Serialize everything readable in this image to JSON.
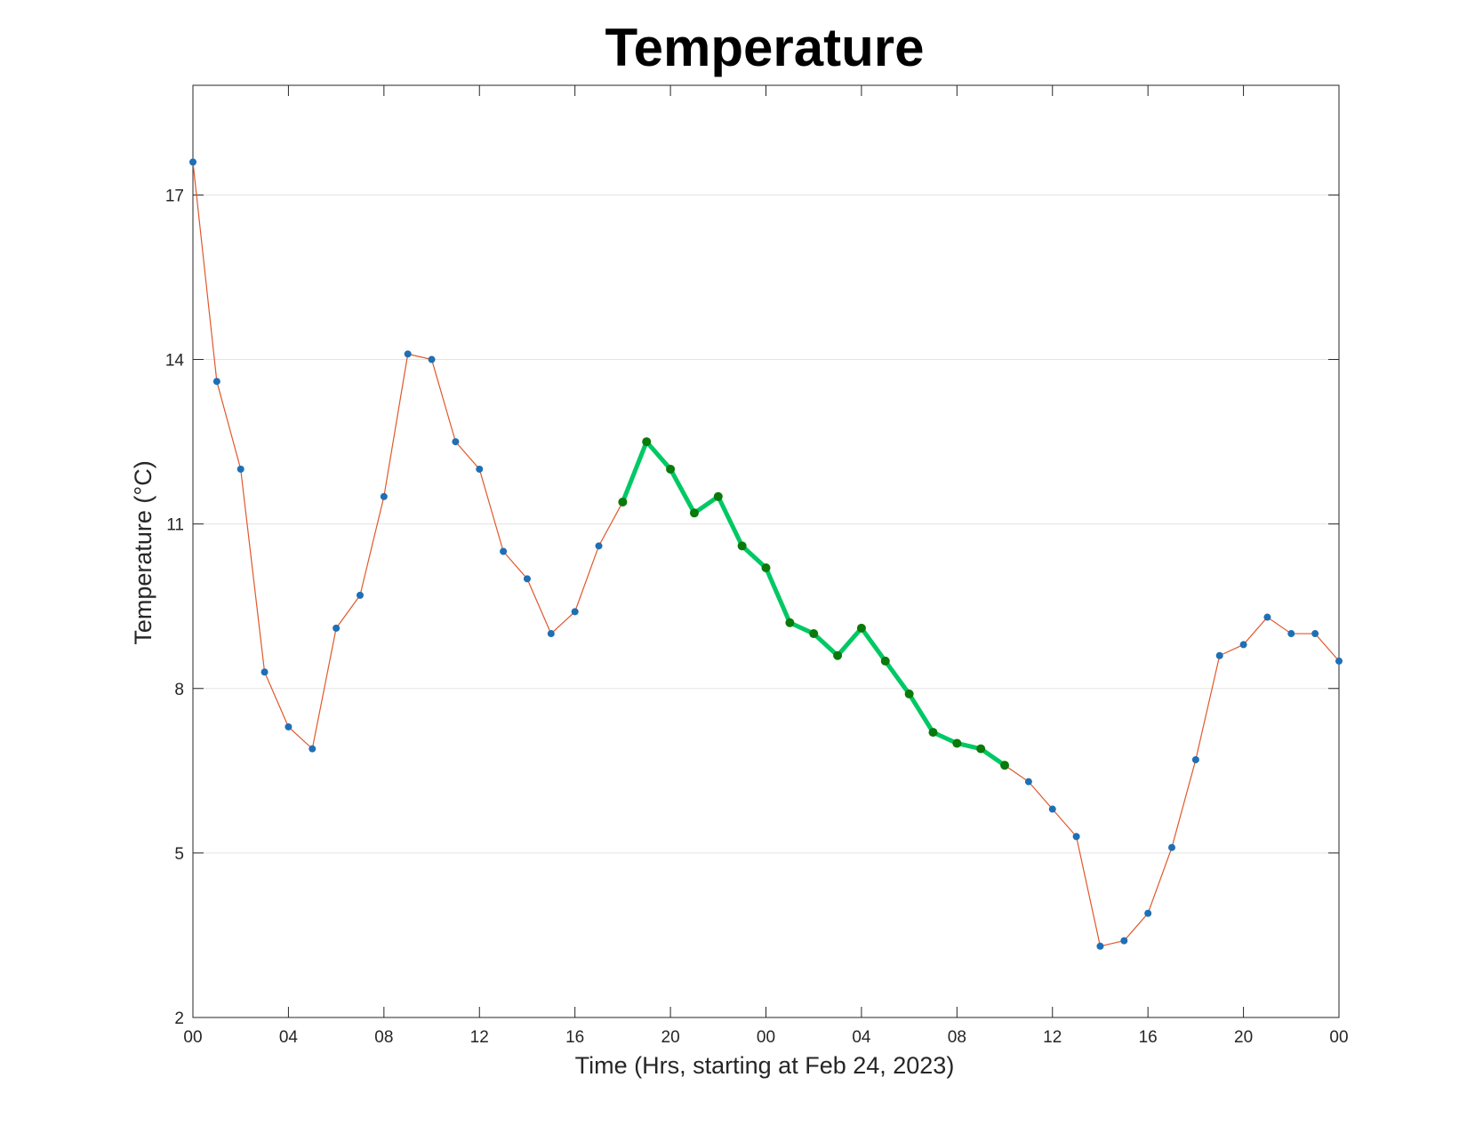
{
  "chart_data": {
    "type": "line",
    "title": "Temperature",
    "xlabel": "Time (Hrs, starting at Feb 24, 2023)",
    "ylabel": "Temperature (°C)",
    "ylim": [
      2,
      19
    ],
    "xlim": [
      0,
      48
    ],
    "x_unit": "hours",
    "yticks": [
      2,
      5,
      8,
      11,
      14,
      17
    ],
    "xticks": [
      0,
      4,
      8,
      12,
      16,
      20,
      24,
      28,
      32,
      36,
      40,
      44,
      48
    ],
    "xtick_labels": [
      "00",
      "04",
      "08",
      "12",
      "16",
      "20",
      "00",
      "04",
      "08",
      "12",
      "16",
      "20",
      "00"
    ],
    "grid": "horizontal",
    "colors": {
      "line": "#e0582a",
      "marker": "#1f6fb5",
      "highlight_line": "#00c864",
      "highlight_marker": "#0a7a0a"
    },
    "series": [
      {
        "values": [
          17.6,
          13.6,
          12.0,
          8.3,
          7.3,
          6.9,
          9.1,
          9.7,
          11.5,
          14.1,
          14.0,
          12.5,
          12.0,
          10.5,
          10.0,
          9.0,
          9.4,
          10.6,
          11.4,
          12.5,
          12.0,
          11.2,
          11.5,
          10.6,
          10.2,
          9.2,
          9.0,
          8.6,
          9.1,
          8.5,
          7.9,
          7.2,
          7.0,
          6.9,
          6.6,
          6.3,
          5.8,
          5.3,
          3.3,
          3.4,
          3.9,
          5.1,
          6.7,
          8.6,
          8.8,
          9.3,
          9.0,
          9.0,
          8.5
        ]
      }
    ],
    "highlight_range": [
      18,
      34
    ]
  }
}
